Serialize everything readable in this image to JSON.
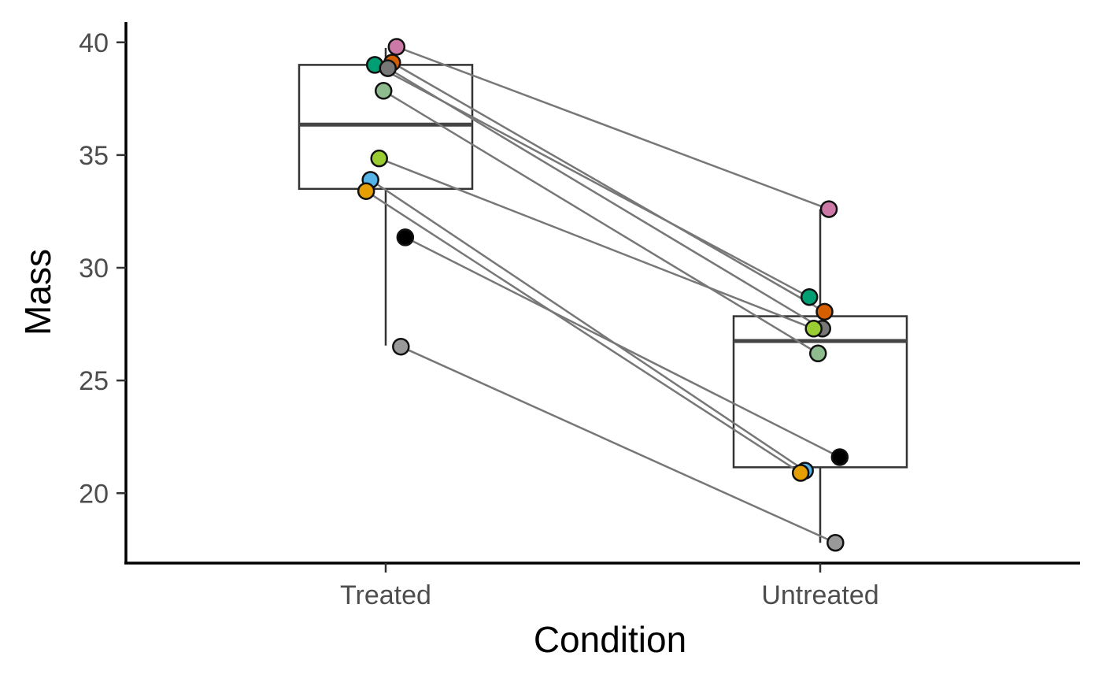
{
  "chart_data": {
    "type": "boxplot-paired-scatter",
    "title": "",
    "xlabel": "Condition",
    "ylabel": "Mass",
    "categories": [
      "Treated",
      "Untreated"
    ],
    "ylim": [
      16.9,
      40.9
    ],
    "yticks": [
      20,
      25,
      30,
      35,
      40
    ],
    "grid": false,
    "legend": "none",
    "boxes": [
      {
        "category": "Treated",
        "lower_whisker": 26.55,
        "q1": 33.5,
        "median": 36.35,
        "q3": 39.0,
        "upper_whisker": 39.75
      },
      {
        "category": "Untreated",
        "lower_whisker": 17.8,
        "q1": 21.15,
        "median": 26.75,
        "q3": 27.85,
        "upper_whisker": 32.6
      }
    ],
    "subjects": [
      {
        "color": "#CC79A7",
        "treated": 39.8,
        "untreated": 32.6,
        "jitter_treated": 0.025,
        "jitter_untreated": 0.02
      },
      {
        "color": "#009E73",
        "treated": 39.0,
        "untreated": 28.7,
        "jitter_treated": -0.025,
        "jitter_untreated": -0.025
      },
      {
        "color": "#D55E00",
        "treated": 39.1,
        "untreated": 28.05,
        "jitter_treated": 0.015,
        "jitter_untreated": 0.01
      },
      {
        "color": "#777777",
        "treated": 38.85,
        "untreated": 27.3,
        "jitter_treated": 0.005,
        "jitter_untreated": 0.005
      },
      {
        "color": "#8FBC8F",
        "treated": 37.85,
        "untreated": 26.2,
        "jitter_treated": -0.005,
        "jitter_untreated": -0.005
      },
      {
        "color": "#9ACD32",
        "treated": 34.85,
        "untreated": 27.3,
        "jitter_treated": -0.015,
        "jitter_untreated": -0.015
      },
      {
        "color": "#56B4E9",
        "treated": 33.9,
        "untreated": 21.0,
        "jitter_treated": -0.035,
        "jitter_untreated": -0.035
      },
      {
        "color": "#E69F00",
        "treated": 33.4,
        "untreated": 20.9,
        "jitter_treated": -0.045,
        "jitter_untreated": -0.045
      },
      {
        "color": "#000000",
        "treated": 31.35,
        "untreated": 21.6,
        "jitter_treated": 0.045,
        "jitter_untreated": 0.045
      },
      {
        "color": "#999999",
        "treated": 26.5,
        "untreated": 17.8,
        "jitter_treated": 0.035,
        "jitter_untreated": 0.035
      }
    ]
  }
}
